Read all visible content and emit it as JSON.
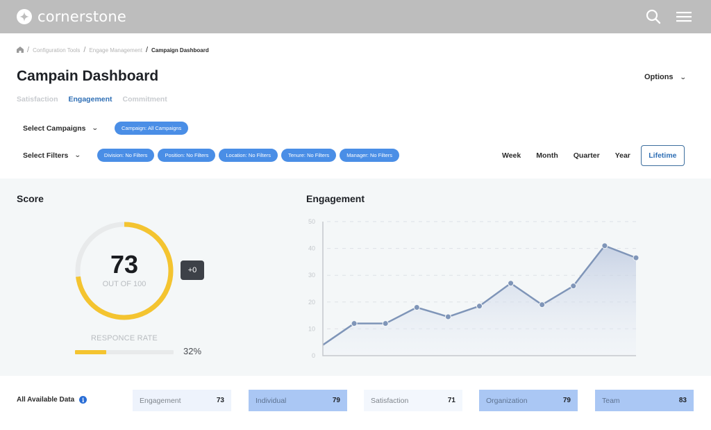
{
  "header": {
    "brand": "cornerstone",
    "icons": [
      "logo-icon",
      "search-icon",
      "hamburger-menu-icon"
    ]
  },
  "breadcrumb": {
    "items": [
      "Configuration Tools",
      "Engage Management",
      "Campaign Dashboard"
    ],
    "home_icon": "home-icon"
  },
  "page": {
    "title": "Campain Dashboard",
    "options_label": "Options"
  },
  "tabs": [
    {
      "label": "Satisfaction",
      "active": false
    },
    {
      "label": "Engagement",
      "active": true
    },
    {
      "label": "Commitment",
      "active": false
    }
  ],
  "campaigns": {
    "label": "Select Campaigns",
    "chips": [
      "Campaign: All Campaigns"
    ]
  },
  "filters": {
    "label": "Select Filters",
    "chips": [
      "Division: No Filters",
      "Position: No Filters",
      "Location: No Filters",
      "Tenure: No Filters",
      "Manager: No Filters"
    ]
  },
  "periods": {
    "items": [
      "Week",
      "Month",
      "Quarter",
      "Year",
      "Lifetime"
    ],
    "selected": "Lifetime"
  },
  "score": {
    "title": "Score",
    "value": "73",
    "out_of": "OUT OF 100",
    "delta": "+0",
    "response_rate_label": "RESPONCE RATE",
    "response_rate": "32%",
    "response_rate_value": 32,
    "score_value": 73,
    "gauge_color": "#f4c430",
    "track_color": "#e8eaeb"
  },
  "engagement": {
    "title": "Engagement"
  },
  "chart_data": {
    "type": "area",
    "title": "Engagement",
    "xlabel": "",
    "ylabel": "",
    "ylim": [
      0,
      50
    ],
    "yticks": [
      0,
      10,
      20,
      30,
      40,
      50
    ],
    "grid": true,
    "x": [
      1,
      2,
      3,
      4,
      5,
      6,
      7,
      8,
      9,
      10,
      11
    ],
    "values": [
      4,
      12,
      12,
      18,
      14.5,
      18.5,
      27,
      19,
      26,
      41,
      36.5
    ],
    "line_color": "#7f95b8"
  },
  "summary": {
    "label": "All Available Data",
    "cards": [
      {
        "label": "Engagement",
        "value": "73"
      },
      {
        "label": "Individual",
        "value": "79"
      },
      {
        "label": "Satisfaction",
        "value": "71"
      },
      {
        "label": "Organization",
        "value": "79"
      },
      {
        "label": "Team",
        "value": "83"
      }
    ]
  }
}
